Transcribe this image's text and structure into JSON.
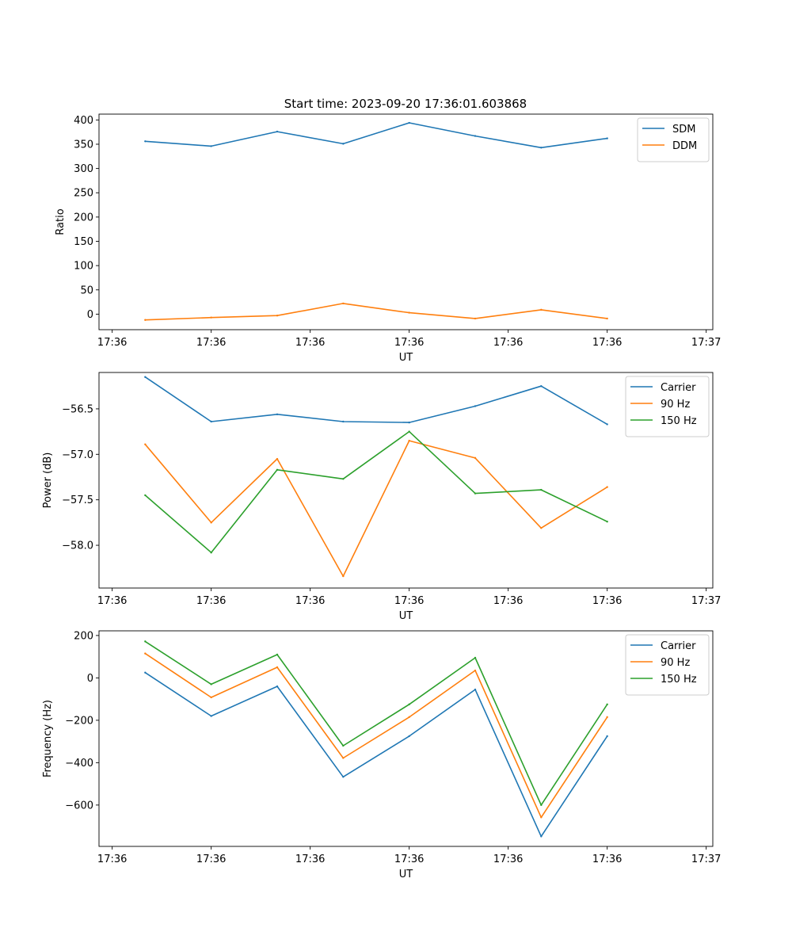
{
  "chart_data": [
    {
      "type": "line",
      "title": "Start time: 2023-09-20 17:36:01.603868",
      "xlabel": "UT",
      "ylabel": "Ratio",
      "x": [
        1,
        2,
        3,
        4,
        5,
        6,
        7,
        8
      ],
      "xlim": [
        0.3,
        9.6
      ],
      "xtick_values": [
        0.5,
        2.0,
        3.5,
        5.0,
        6.5,
        8.0,
        9.5
      ],
      "xtick_labels": [
        "17:36",
        "17:36",
        "17:36",
        "17:36",
        "17:36",
        "17:36",
        "17:37"
      ],
      "ylim": [
        -32,
        412
      ],
      "yticks": [
        0,
        50,
        100,
        150,
        200,
        250,
        300,
        350,
        400
      ],
      "ytick_labels": [
        "0",
        "50",
        "100",
        "150",
        "200",
        "250",
        "300",
        "350",
        "400"
      ],
      "legend_position": "top-right",
      "series": [
        {
          "name": "SDM",
          "color": "#1f77b4",
          "values": [
            356,
            346,
            376,
            351,
            394,
            367,
            343,
            362
          ]
        },
        {
          "name": "DDM",
          "color": "#ff7f0e",
          "values": [
            -12,
            -7,
            -3,
            22,
            3,
            -9,
            9,
            -9
          ]
        }
      ]
    },
    {
      "type": "line",
      "title": "",
      "xlabel": "UT",
      "ylabel": "Power (dB)",
      "x": [
        1,
        2,
        3,
        4,
        5,
        6,
        7,
        8
      ],
      "xlim": [
        0.3,
        9.6
      ],
      "xtick_values": [
        0.5,
        2.0,
        3.5,
        5.0,
        6.5,
        8.0,
        9.5
      ],
      "xtick_labels": [
        "17:36",
        "17:36",
        "17:36",
        "17:36",
        "17:36",
        "17:36",
        "17:37"
      ],
      "ylim": [
        -58.47,
        -56.1
      ],
      "yticks": [
        -58.0,
        -57.5,
        -57.0,
        -56.5
      ],
      "ytick_labels": [
        "−58.0",
        "−57.5",
        "−57.0",
        "−56.5"
      ],
      "legend_position": "top-right",
      "series": [
        {
          "name": "Carrier",
          "color": "#1f77b4",
          "values": [
            -56.15,
            -56.64,
            -56.56,
            -56.64,
            -56.65,
            -56.47,
            -56.25,
            -56.67
          ]
        },
        {
          "name": "90 Hz",
          "color": "#ff7f0e",
          "values": [
            -56.89,
            -57.75,
            -57.05,
            -58.34,
            -56.85,
            -57.04,
            -57.81,
            -57.36
          ]
        },
        {
          "name": "150 Hz",
          "color": "#2ca02c",
          "values": [
            -57.45,
            -58.08,
            -57.17,
            -57.27,
            -56.75,
            -57.43,
            -57.39,
            -57.74
          ]
        }
      ]
    },
    {
      "type": "line",
      "title": "",
      "xlabel": "UT",
      "ylabel": "Frequency (Hz)",
      "x": [
        1,
        2,
        3,
        4,
        5,
        6,
        7,
        8
      ],
      "xlim": [
        0.3,
        9.6
      ],
      "xtick_values": [
        0.5,
        2.0,
        3.5,
        5.0,
        6.5,
        8.0,
        9.5
      ],
      "xtick_labels": [
        "17:36",
        "17:36",
        "17:36",
        "17:36",
        "17:36",
        "17:36",
        "17:37"
      ],
      "ylim": [
        -795,
        222
      ],
      "yticks": [
        -600,
        -400,
        -200,
        0,
        200
      ],
      "ytick_labels": [
        "−600",
        "−400",
        "−200",
        "0",
        "200"
      ],
      "legend_position": "top-right",
      "series": [
        {
          "name": "Carrier",
          "color": "#1f77b4",
          "values": [
            25,
            -180,
            -40,
            -467,
            -275,
            -55,
            -748,
            -275
          ]
        },
        {
          "name": "90 Hz",
          "color": "#ff7f0e",
          "values": [
            115,
            -92,
            50,
            -378,
            -185,
            35,
            -658,
            -185
          ]
        },
        {
          "name": "150 Hz",
          "color": "#2ca02c",
          "values": [
            172,
            -30,
            110,
            -320,
            -125,
            95,
            -600,
            -125
          ]
        }
      ]
    }
  ]
}
